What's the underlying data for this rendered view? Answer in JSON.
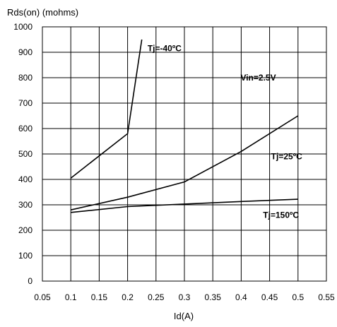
{
  "chart_data": {
    "type": "line",
    "xlabel": "Id(A)",
    "ylabel": "Rds(on) (mohms)",
    "xlim": [
      0.05,
      0.55
    ],
    "ylim": [
      0,
      1000
    ],
    "x_ticks": [
      0.05,
      0.1,
      0.15,
      0.2,
      0.25,
      0.3,
      0.35,
      0.4,
      0.45,
      0.5,
      0.55
    ],
    "x_tick_labels": [
      "0.05",
      "0.1",
      "0.15",
      "0.2",
      "0.25",
      "0.3",
      "0.35",
      "0.4",
      "0.45",
      "0.5",
      "0.55"
    ],
    "y_ticks": [
      0,
      100,
      200,
      300,
      400,
      500,
      600,
      700,
      800,
      900,
      1000
    ],
    "y_tick_labels": [
      "0",
      "100",
      "200",
      "300",
      "400",
      "500",
      "600",
      "700",
      "800",
      "900",
      "1000"
    ],
    "grid": true,
    "annotations": [
      {
        "text": "Vin=2.5V",
        "x": 0.43,
        "y": 800
      },
      {
        "text": "Tj=-40ºC",
        "x": 0.265,
        "y": 915
      },
      {
        "text": "Tj=25ºC",
        "x": 0.48,
        "y": 490
      },
      {
        "text": "Tj=150ºC",
        "x": 0.47,
        "y": 260
      }
    ],
    "series": [
      {
        "name": "Tj=-40ºC",
        "x": [
          0.1,
          0.2,
          0.225
        ],
        "y": [
          405,
          580,
          950
        ]
      },
      {
        "name": "Tj=25ºC",
        "x": [
          0.1,
          0.2,
          0.3,
          0.4,
          0.5
        ],
        "y": [
          280,
          330,
          390,
          510,
          650
        ]
      },
      {
        "name": "Tj=150ºC",
        "x": [
          0.1,
          0.2,
          0.3,
          0.4,
          0.5
        ],
        "y": [
          270,
          293,
          303,
          313,
          322
        ]
      }
    ]
  }
}
